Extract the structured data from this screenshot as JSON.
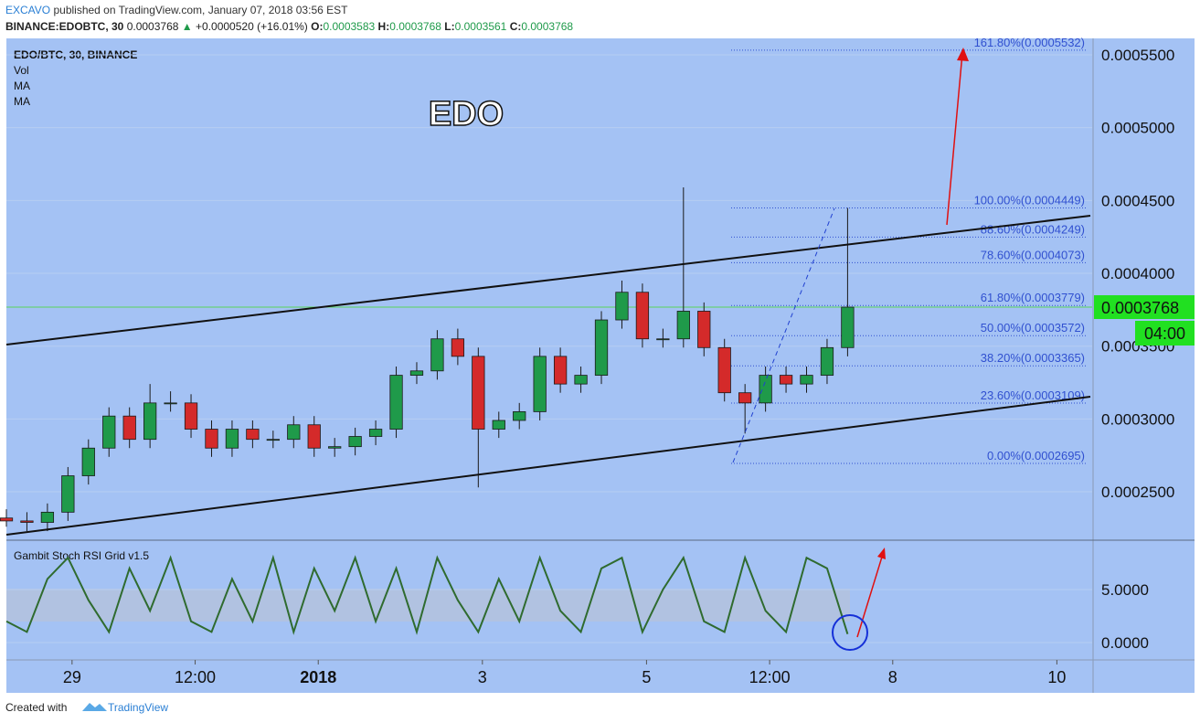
{
  "header": {
    "author": "EXCAVO",
    "published": "published on TradingView.com, January 07, 2018 03:56 EST",
    "symbol": "BINANCE:EDOBTC, 30",
    "last": "0.0003768",
    "change": "+0.0000520 (+16.01%)",
    "ohlc": [
      {
        "label": "O:",
        "value": "0.0003583"
      },
      {
        "label": "H:",
        "value": "0.0003768"
      },
      {
        "label": "L:",
        "value": "0.0003561"
      },
      {
        "label": "C:",
        "value": "0.0003768"
      }
    ]
  },
  "legend": [
    "EDO/BTC, 30, BINANCE",
    "Vol",
    "MA",
    "MA"
  ],
  "footer": {
    "created": "Created with",
    "brand": "TradingView"
  },
  "chart_data": [
    {
      "type": "candlestick",
      "title": "EDO",
      "x": [
        -0.8,
        -0.55,
        -0.3,
        -0.05,
        0.2,
        0.45,
        0.7,
        0.95,
        1.2,
        1.45,
        1.7,
        1.95,
        2.2,
        2.45,
        2.7,
        2.95,
        3.2,
        3.45,
        3.7,
        3.95,
        4.2,
        4.45,
        4.7,
        4.95,
        5.2,
        5.45,
        5.7,
        5.95,
        6.2,
        6.45,
        6.7,
        6.95,
        7.2,
        7.45,
        7.7,
        7.95,
        8.2,
        8.45,
        8.7,
        8.95,
        9.2,
        9.45
      ],
      "open": [
        0.000232,
        0.00023,
        0.000229,
        0.000236,
        0.000261,
        0.00028,
        0.000302,
        0.000286,
        0.000311,
        0.000311,
        0.000293,
        0.00028,
        0.000293,
        0.000286,
        0.000286,
        0.000296,
        0.00028,
        0.000281,
        0.000288,
        0.000293,
        0.00033,
        0.000333,
        0.000355,
        0.000343,
        0.000293,
        0.000299,
        0.000305,
        0.000343,
        0.000324,
        0.00033,
        0.000368,
        0.000387,
        0.000355,
        0.000355,
        0.000374,
        0.000349,
        0.000318,
        0.000311,
        0.00033,
        0.000324,
        0.00033,
        0.000349
      ],
      "high": [
        0.000238,
        0.000236,
        0.000242,
        0.000267,
        0.000286,
        0.000308,
        0.000308,
        0.000324,
        0.000319,
        0.000317,
        0.000299,
        0.000299,
        0.000299,
        0.000292,
        0.000302,
        0.000302,
        0.000287,
        0.000294,
        0.000299,
        0.000336,
        0.000339,
        0.000361,
        0.000362,
        0.000349,
        0.000305,
        0.000311,
        0.000349,
        0.000349,
        0.000336,
        0.000374,
        0.000395,
        0.000393,
        0.000362,
        0.000459,
        0.00038,
        0.000355,
        0.000324,
        0.000336,
        0.000336,
        0.000336,
        0.000355,
        0.0004449
      ],
      "low": [
        0.000226,
        0.000223,
        0.000223,
        0.00023,
        0.000255,
        0.000274,
        0.00028,
        0.00028,
        0.000305,
        0.000287,
        0.000274,
        0.000274,
        0.00028,
        0.00028,
        0.00028,
        0.000274,
        0.000274,
        0.000275,
        0.000282,
        0.000287,
        0.000324,
        0.000327,
        0.000337,
        0.000253,
        0.000287,
        0.000293,
        0.000299,
        0.000318,
        0.000318,
        0.000324,
        0.000362,
        0.000349,
        0.000349,
        0.000349,
        0.000343,
        0.000312,
        0.00029,
        0.000305,
        0.000318,
        0.000318,
        0.000324,
        0.000343
      ],
      "close": [
        0.00023,
        0.000229,
        0.000236,
        0.000261,
        0.00028,
        0.000302,
        0.000286,
        0.000311,
        0.000311,
        0.000293,
        0.00028,
        0.000293,
        0.000286,
        0.000286,
        0.000296,
        0.00028,
        0.000281,
        0.000288,
        0.000293,
        0.00033,
        0.000333,
        0.000355,
        0.000343,
        0.000293,
        0.000299,
        0.000305,
        0.000343,
        0.000324,
        0.00033,
        0.000368,
        0.000387,
        0.000355,
        0.000355,
        0.000374,
        0.000349,
        0.000318,
        0.000311,
        0.00033,
        0.000324,
        0.00033,
        0.000349,
        0.0003768
      ],
      "up_color": "#1f9a4a",
      "down_color": "#d42a2a",
      "xlim": [
        -0.8,
        12.43
      ],
      "ylim": [
        0.0002174,
        0.0005613
      ],
      "yticks": [
        {
          "value": 0.00055,
          "label": "0.0005500"
        },
        {
          "value": 0.0005,
          "label": "0.0005000"
        },
        {
          "value": 0.00045,
          "label": "0.0004500"
        },
        {
          "value": 0.0004,
          "label": "0.0004000"
        },
        {
          "value": 0.00035,
          "label": "0.0003500"
        },
        {
          "value": 0.0003,
          "label": "0.0003000"
        },
        {
          "value": 0.00025,
          "label": "0.0002500"
        }
      ],
      "grid": true,
      "fib_levels": [
        {
          "value": 0.0005532,
          "label": "161.80%(0.0005532)"
        },
        {
          "value": 0.0004449,
          "label": "100.00%(0.0004449)"
        },
        {
          "value": 0.0004249,
          "label": "88.60%(0.0004249)"
        },
        {
          "value": 0.0004073,
          "label": "78.60%(0.0004073)"
        },
        {
          "value": 0.0003779,
          "label": "61.80%(0.0003779)"
        },
        {
          "value": 0.0003572,
          "label": "50.00%(0.0003572)"
        },
        {
          "value": 0.0003365,
          "label": "38.20%(0.0003365)"
        },
        {
          "value": 0.0003109,
          "label": "23.60%(0.0003109)"
        },
        {
          "value": 0.0002695,
          "label": "0.00%(0.0002695)"
        }
      ],
      "last_price": {
        "value": 0.0003768,
        "label": "0.0003768"
      },
      "countdown": "04:00"
    },
    {
      "type": "line",
      "title": "Gambit Stoch RSI Grid v1.5",
      "color": "#2f6b2f",
      "x": [
        -0.8,
        -0.55,
        -0.3,
        -0.05,
        0.2,
        0.45,
        0.7,
        0.95,
        1.2,
        1.45,
        1.7,
        1.95,
        2.2,
        2.45,
        2.7,
        2.95,
        3.2,
        3.45,
        3.7,
        3.95,
        4.2,
        4.45,
        4.7,
        4.95,
        5.2,
        5.45,
        5.7,
        5.95,
        6.2,
        6.45,
        6.7,
        6.95,
        7.2,
        7.45,
        7.7,
        7.95,
        8.2,
        8.45,
        8.7,
        8.95,
        9.2,
        9.45
      ],
      "values": [
        2,
        1,
        6,
        8,
        4,
        1,
        7,
        3,
        8,
        2,
        1,
        6,
        2,
        8,
        1,
        7,
        3,
        8,
        2,
        7,
        1,
        8,
        4,
        1,
        6,
        2,
        8,
        3,
        1,
        7,
        8,
        1,
        5,
        8,
        2,
        1,
        8,
        3,
        1,
        8,
        7,
        0.8
      ],
      "xlim": [
        -0.8,
        12.43
      ],
      "ylim": [
        -1.64,
        9.57
      ],
      "yticks": [
        {
          "value": 5,
          "label": "5.0000"
        },
        {
          "value": 0,
          "label": "0.0000"
        }
      ],
      "xticks": [
        {
          "value": 0,
          "label": "29"
        },
        {
          "value": 1.5,
          "label": "12:00"
        },
        {
          "value": 3,
          "label": "2018"
        },
        {
          "value": 5,
          "label": "3"
        },
        {
          "value": 7,
          "label": "5"
        },
        {
          "value": 8.5,
          "label": "12:00"
        },
        {
          "value": 10,
          "label": "8"
        },
        {
          "value": 12,
          "label": "10"
        }
      ]
    }
  ]
}
